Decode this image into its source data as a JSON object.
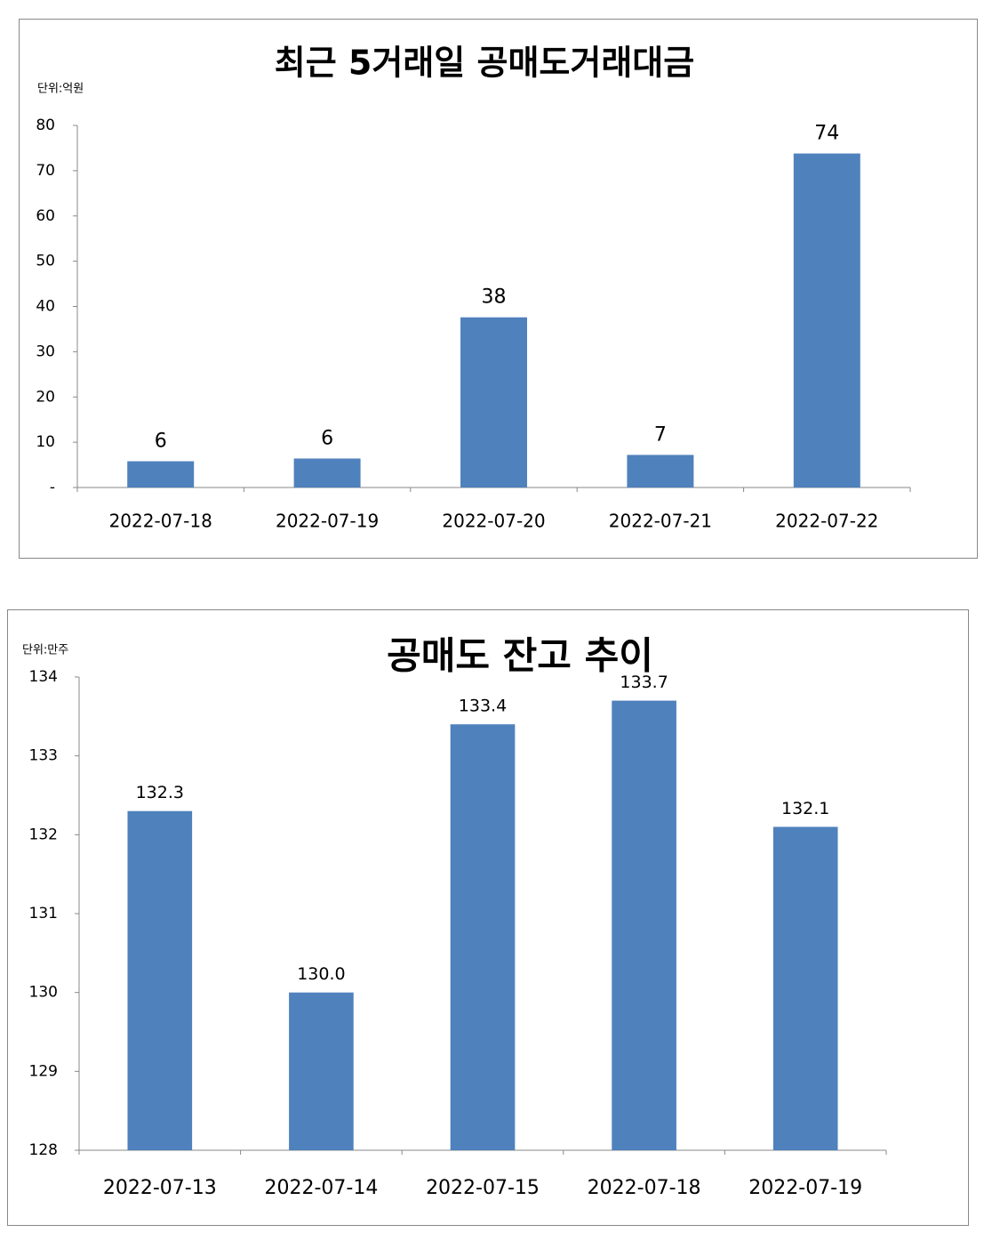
{
  "chart_data": [
    {
      "type": "bar",
      "title": "최근 5거래일 공매도거래대금",
      "unit_label": "단위:억원",
      "categories": [
        "2022-07-18",
        "2022-07-19",
        "2022-07-20",
        "2022-07-21",
        "2022-07-22"
      ],
      "values": [
        5.8,
        6.4,
        37.6,
        7.2,
        73.8
      ],
      "value_labels": [
        "6",
        "6",
        "38",
        "7",
        "74"
      ],
      "color": "#4f81bd",
      "ylim": [
        0,
        80
      ],
      "yticks": [
        {
          "value": 0,
          "label": "-"
        },
        10,
        20,
        30,
        40,
        50,
        60,
        70,
        80
      ],
      "grid": false
    },
    {
      "type": "bar",
      "title": "공매도 잔고 추이",
      "unit_label": "단위:만주",
      "categories": [
        "2022-07-13",
        "2022-07-14",
        "2022-07-15",
        "2022-07-18",
        "2022-07-19"
      ],
      "values": [
        132.3,
        130.0,
        133.4,
        133.7,
        132.1
      ],
      "value_labels": [
        "132.3",
        "130.0",
        "133.4",
        "133.7",
        "132.1"
      ],
      "color": "#4f81bd",
      "ylim": [
        128,
        134
      ],
      "yticks": [
        128,
        129,
        130,
        131,
        132,
        133,
        134
      ],
      "grid": false
    }
  ]
}
